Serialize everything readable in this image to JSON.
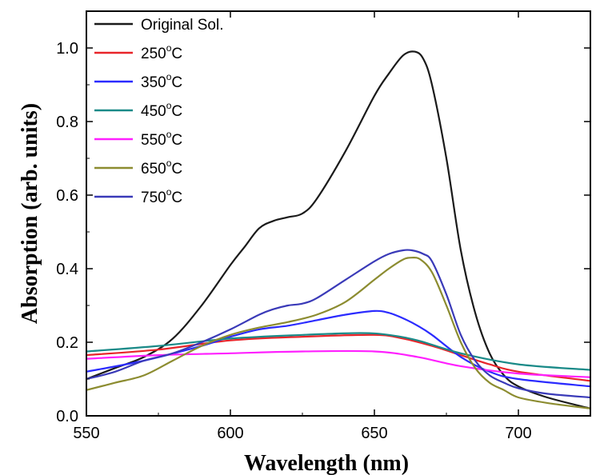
{
  "chart_data": {
    "type": "line",
    "title": "",
    "xlabel": "Wavelength (nm)",
    "ylabel": "Absorption (arb. units)",
    "xlim": [
      550,
      725
    ],
    "ylim": [
      0,
      1.1
    ],
    "x_ticks": [
      "550",
      "600",
      "650",
      "700"
    ],
    "y_ticks": [
      "0.0",
      "0.2",
      "0.4",
      "0.6",
      "0.8",
      "1.0"
    ],
    "legend_position": "top-left",
    "grid": false,
    "series": [
      {
        "name": "Original Sol.",
        "temp": "",
        "color": "#1a1a1a",
        "x": [
          550,
          560,
          570,
          580,
          590,
          600,
          605,
          610,
          615,
          620,
          625,
          630,
          640,
          650,
          655,
          660,
          664,
          667,
          670,
          675,
          680,
          685,
          690,
          695,
          700,
          710,
          725
        ],
        "y": [
          0.1,
          0.13,
          0.16,
          0.21,
          0.3,
          0.41,
          0.46,
          0.51,
          0.53,
          0.54,
          0.55,
          0.59,
          0.72,
          0.87,
          0.93,
          0.98,
          0.99,
          0.97,
          0.9,
          0.7,
          0.45,
          0.28,
          0.17,
          0.11,
          0.08,
          0.05,
          0.02
        ]
      },
      {
        "name": "250",
        "temp": "250",
        "color": "#e8252a",
        "x": [
          550,
          575,
          600,
          625,
          650,
          660,
          670,
          680,
          690,
          700,
          725
        ],
        "y": [
          0.165,
          0.18,
          0.205,
          0.215,
          0.22,
          0.21,
          0.19,
          0.165,
          0.14,
          0.12,
          0.095
        ]
      },
      {
        "name": "350",
        "temp": "350",
        "color": "#2b2bff",
        "x": [
          550,
          570,
          590,
          600,
          610,
          620,
          630,
          640,
          650,
          655,
          660,
          665,
          670,
          680,
          690,
          700,
          725
        ],
        "y": [
          0.12,
          0.15,
          0.19,
          0.215,
          0.235,
          0.245,
          0.26,
          0.275,
          0.285,
          0.28,
          0.265,
          0.245,
          0.22,
          0.16,
          0.12,
          0.1,
          0.08
        ]
      },
      {
        "name": "450",
        "temp": "450",
        "color": "#1a8a88",
        "x": [
          550,
          575,
          600,
          625,
          645,
          655,
          665,
          680,
          700,
          725
        ],
        "y": [
          0.175,
          0.19,
          0.21,
          0.22,
          0.225,
          0.22,
          0.205,
          0.17,
          0.14,
          0.125
        ]
      },
      {
        "name": "550",
        "temp": "550",
        "color": "#ff20ff",
        "x": [
          550,
          575,
          600,
          625,
          650,
          665,
          680,
          700,
          725
        ],
        "y": [
          0.155,
          0.165,
          0.17,
          0.175,
          0.175,
          0.16,
          0.135,
          0.115,
          0.105
        ]
      },
      {
        "name": "650",
        "temp": "650",
        "color": "#8c8c30",
        "x": [
          550,
          560,
          570,
          580,
          590,
          600,
          610,
          620,
          630,
          640,
          650,
          655,
          660,
          663,
          666,
          670,
          675,
          680,
          685,
          690,
          695,
          700,
          710,
          725
        ],
        "y": [
          0.07,
          0.09,
          0.11,
          0.15,
          0.19,
          0.22,
          0.24,
          0.255,
          0.275,
          0.31,
          0.37,
          0.4,
          0.425,
          0.43,
          0.425,
          0.39,
          0.3,
          0.2,
          0.13,
          0.09,
          0.07,
          0.05,
          0.035,
          0.02
        ]
      },
      {
        "name": "750",
        "temp": "750",
        "color": "#3a3ab8",
        "x": [
          550,
          560,
          570,
          580,
          590,
          600,
          610,
          615,
          620,
          625,
          630,
          640,
          650,
          655,
          660,
          663,
          667,
          670,
          675,
          680,
          685,
          690,
          695,
          700,
          710,
          725
        ],
        "y": [
          0.1,
          0.12,
          0.15,
          0.17,
          0.2,
          0.235,
          0.275,
          0.29,
          0.3,
          0.305,
          0.32,
          0.37,
          0.42,
          0.44,
          0.45,
          0.45,
          0.44,
          0.42,
          0.33,
          0.22,
          0.15,
          0.11,
          0.09,
          0.075,
          0.06,
          0.05
        ]
      }
    ],
    "legend_suffix": "C",
    "degree_symbol": "o"
  }
}
